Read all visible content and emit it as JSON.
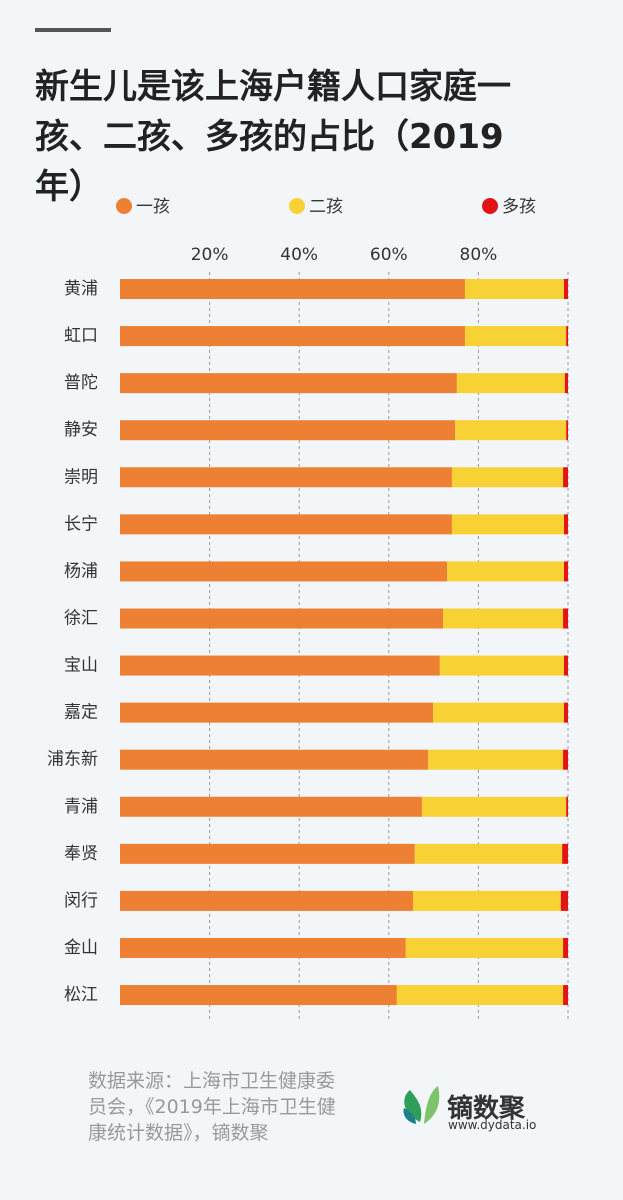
{
  "chart_data": {
    "type": "stacked-bar-horizontal",
    "title": "新生儿是该上海户籍人口家庭一孩、二孩、多孩的占比（2019年）",
    "categories": [
      "黄浦",
      "虹口",
      "普陀",
      "静安",
      "崇明",
      "长宁",
      "杨浦",
      "徐汇",
      "宝山",
      "嘉定",
      "浦东新",
      "青浦",
      "奉贤",
      "闵行",
      "金山",
      "松江"
    ],
    "series": [
      {
        "name": "一孩",
        "color": "#ee8033",
        "values": [
          77.0,
          77.0,
          75.2,
          74.8,
          74.1,
          74.1,
          73.0,
          72.1,
          71.4,
          69.9,
          68.8,
          67.4,
          65.8,
          65.4,
          63.8,
          61.8
        ]
      },
      {
        "name": "二孩",
        "color": "#f8d135",
        "values": [
          22.1,
          22.6,
          24.1,
          24.8,
          24.8,
          25.0,
          26.1,
          26.8,
          27.7,
          29.2,
          30.1,
          32.2,
          32.9,
          33.0,
          35.1,
          37.1
        ]
      },
      {
        "name": "多孩",
        "color": "#e31414",
        "values": [
          0.9,
          0.4,
          0.7,
          0.4,
          1.1,
          0.9,
          0.9,
          1.1,
          0.9,
          0.9,
          1.1,
          0.4,
          1.3,
          1.6,
          1.1,
          1.1
        ]
      }
    ],
    "xlim": [
      0,
      100
    ],
    "xticks": [
      {
        "value": 20,
        "label": "20%"
      },
      {
        "value": 40,
        "label": "40%"
      },
      {
        "value": 60,
        "label": "60%"
      },
      {
        "value": 80,
        "label": "80%"
      }
    ],
    "grid": true,
    "source": "数据来源：上海市卫生健康委员会，《2019年上海市卫生健康统计数据》，镝数聚",
    "logo": {
      "name": "镝数聚",
      "url": "www.dydata.io"
    }
  }
}
